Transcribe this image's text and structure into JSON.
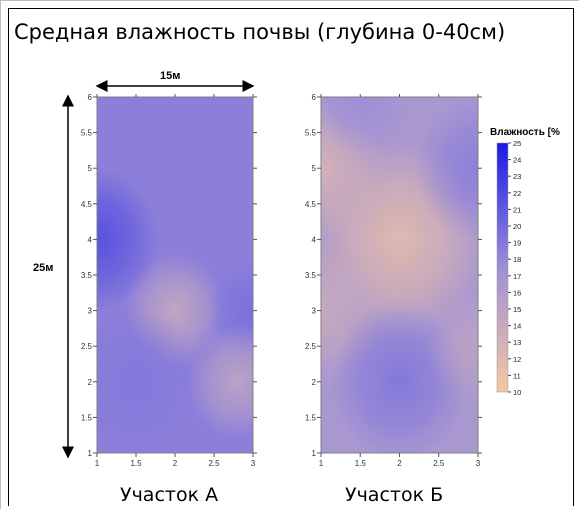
{
  "title": "Средная влажность почвы (глубина 0-40см)",
  "dimensions": {
    "width_label": "15м",
    "height_label": "25м"
  },
  "legend": {
    "title": "Влажность [%",
    "min": 10,
    "max": 25,
    "ticks": [
      "25",
      "24",
      "23",
      "22",
      "21",
      "20",
      "19",
      "18",
      "17",
      "16",
      "15",
      "14",
      "13",
      "12",
      "11",
      "10"
    ],
    "color_low": "#f7c89e",
    "color_mid": "#9d8fd8",
    "color_high": "#1a1ae6"
  },
  "chart_data": [
    {
      "type": "heatmap",
      "title": "Участок А",
      "xlim": [
        1,
        3
      ],
      "ylim": [
        1,
        6
      ],
      "x_ticks": [
        "1",
        "1.5",
        "2",
        "2.5",
        "3"
      ],
      "y_ticks": [
        "1",
        "1.5",
        "2",
        "2.5",
        "3",
        "3.5",
        "4",
        "4.5",
        "5",
        "5.5",
        "6"
      ],
      "background_value": 18.5,
      "hotspots": [
        {
          "x": 1.0,
          "y": 4.0,
          "value": 21.5,
          "r": 0.5
        },
        {
          "x": 2.0,
          "y": 3.0,
          "value": 14.5,
          "r": 0.4
        },
        {
          "x": 3.0,
          "y": 3.0,
          "value": 19.5,
          "r": 0.35
        },
        {
          "x": 2.8,
          "y": 2.0,
          "value": 15.0,
          "r": 0.4
        },
        {
          "x": 1.5,
          "y": 2.0,
          "value": 19.0,
          "r": 0.5
        }
      ]
    },
    {
      "type": "heatmap",
      "title": "Участок Б",
      "xlim": [
        1,
        3
      ],
      "ylim": [
        1,
        6
      ],
      "x_ticks": [
        "1",
        "1.5",
        "2",
        "2.5",
        "3"
      ],
      "y_ticks": [
        "1",
        "1.5",
        "2",
        "2.5",
        "3",
        "3.5",
        "4",
        "4.5",
        "5",
        "5.5",
        "6"
      ],
      "background_value": 16.5,
      "hotspots": [
        {
          "x": 2.0,
          "y": 4.0,
          "value": 12.0,
          "r": 0.7
        },
        {
          "x": 1.0,
          "y": 5.0,
          "value": 13.0,
          "r": 0.5
        },
        {
          "x": 1.0,
          "y": 3.0,
          "value": 14.0,
          "r": 0.5
        },
        {
          "x": 3.0,
          "y": 5.0,
          "value": 18.5,
          "r": 0.5
        },
        {
          "x": 2.0,
          "y": 2.0,
          "value": 19.0,
          "r": 0.55
        },
        {
          "x": 1.5,
          "y": 6.0,
          "value": 17.5,
          "r": 0.4
        },
        {
          "x": 3.0,
          "y": 2.5,
          "value": 15.0,
          "r": 0.4
        }
      ]
    }
  ]
}
